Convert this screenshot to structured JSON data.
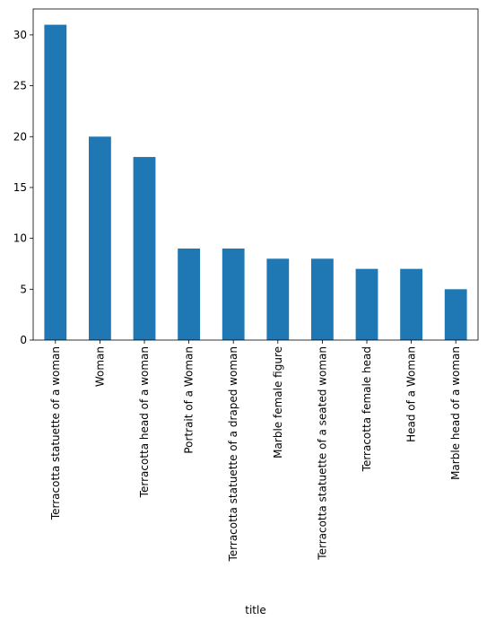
{
  "chart_data": {
    "type": "bar",
    "x_label": "title",
    "categories": [
      "Terracotta statuette of a woman",
      "Woman",
      "Terracotta head of a woman",
      "Portrait of a Woman",
      "Terracotta statuette of a draped woman",
      "Marble female figure",
      "Terracotta statuette of a seated woman",
      "Terracotta female head",
      "Head of a Woman",
      "Marble head of a woman"
    ],
    "values": [
      31,
      20,
      18,
      9,
      9,
      8,
      8,
      7,
      7,
      5
    ],
    "color": "#1f77b4",
    "ylim": [
      0,
      32.55
    ],
    "yticks": [
      0,
      5,
      10,
      15,
      20,
      25,
      30
    ],
    "grid": false
  }
}
